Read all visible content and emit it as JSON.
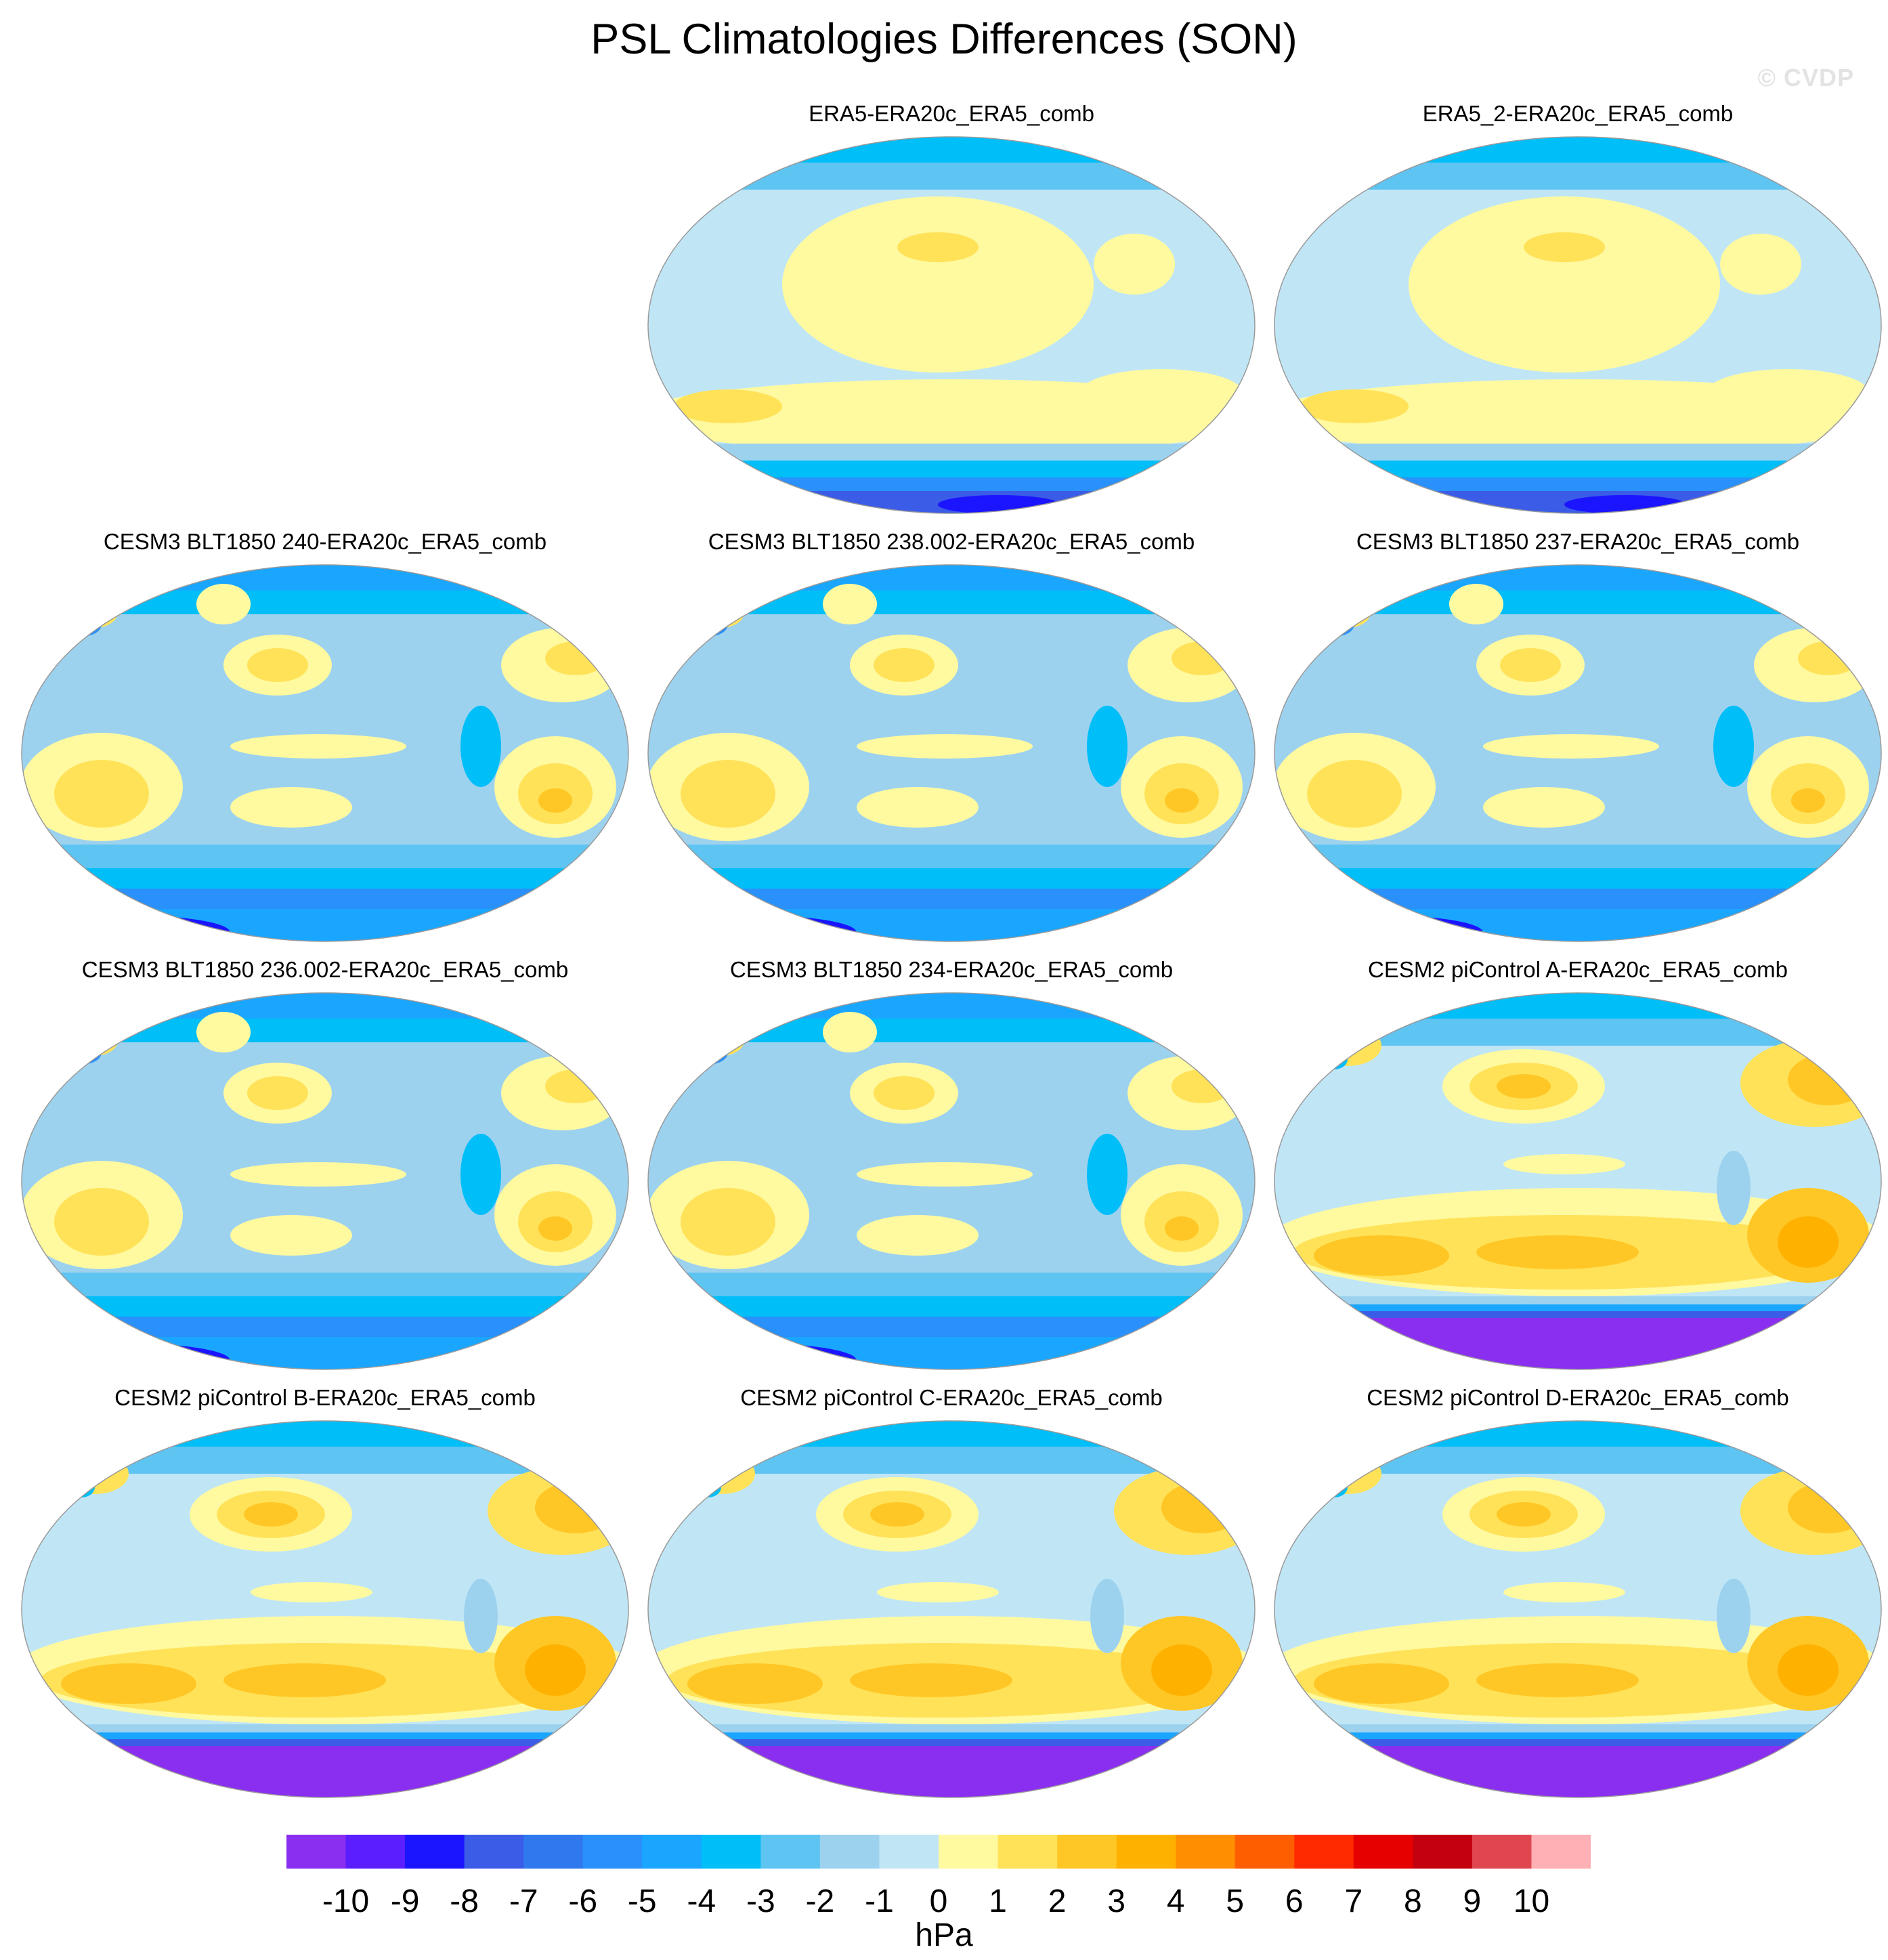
{
  "figure": {
    "title": "PSL Climatologies Differences (SON)",
    "credit": "© CVDP"
  },
  "chart_data": {
    "type": "heatmap",
    "title": "PSL Climatologies Differences (SON)",
    "projection": "Robinson world maps, Pacific-centered",
    "panels": [
      {
        "name": "ERA5-ERA20c_ERA5_comb",
        "pattern": "obs"
      },
      {
        "name": "ERA5_2-ERA20c_ERA5_comb",
        "pattern": "obs"
      },
      {
        "name": "CESM3 BLT1850 240-ERA20c_ERA5_comb",
        "pattern": "cesm3"
      },
      {
        "name": "CESM3 BLT1850 238.002-ERA20c_ERA5_comb",
        "pattern": "cesm3"
      },
      {
        "name": "CESM3 BLT1850 237-ERA20c_ERA5_comb",
        "pattern": "cesm3"
      },
      {
        "name": "CESM3 BLT1850 236.002-ERA20c_ERA5_comb",
        "pattern": "cesm3"
      },
      {
        "name": "CESM3 BLT1850 234-ERA20c_ERA5_comb",
        "pattern": "cesm3"
      },
      {
        "name": "CESM2 piControl A-ERA20c_ERA5_comb",
        "pattern": "cesm2"
      },
      {
        "name": "CESM2 piControl B-ERA20c_ERA5_comb",
        "pattern": "cesm2"
      },
      {
        "name": "CESM2 piControl C-ERA20c_ERA5_comb",
        "pattern": "cesm2"
      },
      {
        "name": "CESM2 piControl D-ERA20c_ERA5_comb",
        "pattern": "cesm2"
      }
    ],
    "colorbar": {
      "units": "hPa",
      "levels": [
        -10,
        -9,
        -8,
        -7,
        -6,
        -5,
        -4,
        -3,
        -2,
        -1,
        0,
        1,
        2,
        3,
        4,
        5,
        6,
        7,
        8,
        9,
        10
      ],
      "level_labels": [
        "-10",
        "-9",
        "-8",
        "-7",
        "-6",
        "-5",
        "-4",
        "-3",
        "-2",
        "-1",
        "0",
        "1",
        "2",
        "3",
        "4",
        "5",
        "6",
        "7",
        "8",
        "9",
        "10"
      ],
      "colors": [
        "#8a2ef0",
        "#5a1eff",
        "#1a14ff",
        "#3b5ce6",
        "#2f78ee",
        "#2a90fb",
        "#1aa6ff",
        "#00bef8",
        "#5ec4f2",
        "#9dd2ef",
        "#c0e6f6",
        "#fff9a0",
        "#ffe258",
        "#ffc726",
        "#ffb100",
        "#ff8e00",
        "#ff5e00",
        "#ff2a00",
        "#e60000",
        "#c40010",
        "#e04650",
        "#ffb0b5"
      ]
    }
  }
}
